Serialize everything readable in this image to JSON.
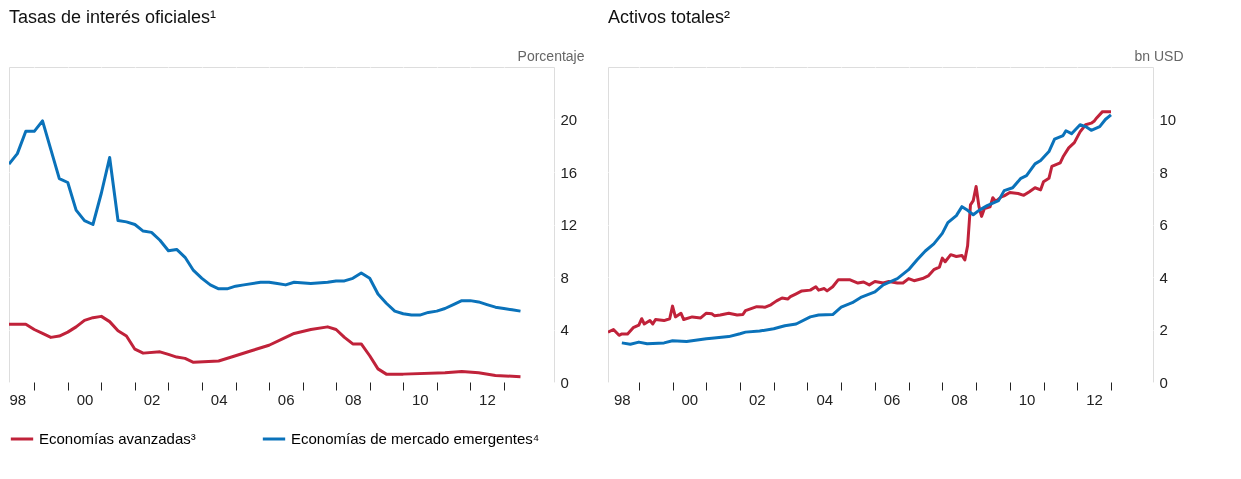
{
  "chart_data": [
    {
      "type": "line",
      "title": "Tasas de interés oficiales¹",
      "ylabel": "Porcentaje",
      "grid": true,
      "legend": "bottom",
      "xlim": [
        "1998-04",
        "2014-07"
      ],
      "ylim": [
        0,
        24
      ],
      "yticks": [
        0,
        4,
        8,
        12,
        16,
        20
      ],
      "xticks": [
        {
          "value": "1998-07",
          "label": "98"
        },
        {
          "value": "2000-07",
          "label": "00"
        },
        {
          "value": "2002-07",
          "label": "02"
        },
        {
          "value": "2004-07",
          "label": "04"
        },
        {
          "value": "2006-07",
          "label": "06"
        },
        {
          "value": "2008-07",
          "label": "08"
        },
        {
          "value": "2010-07",
          "label": "10"
        },
        {
          "value": "2012-07",
          "label": "12"
        },
        {
          "value": "1999-01",
          "label": null
        },
        {
          "value": "2000-01",
          "label": null
        },
        {
          "value": "2001-01",
          "label": null
        },
        {
          "value": "2002-01",
          "label": null
        },
        {
          "value": "2003-01",
          "label": null
        },
        {
          "value": "2004-01",
          "label": null
        },
        {
          "value": "2005-01",
          "label": null
        },
        {
          "value": "2006-01",
          "label": null
        },
        {
          "value": "2007-01",
          "label": null
        },
        {
          "value": "2008-01",
          "label": null
        },
        {
          "value": "2009-01",
          "label": null
        },
        {
          "value": "2010-01",
          "label": null
        },
        {
          "value": "2011-01",
          "label": null
        },
        {
          "value": "2012-01",
          "label": null
        },
        {
          "value": "2013-01",
          "label": null
        }
      ],
      "series": [
        {
          "name": "Economías avanzadas³",
          "color": "#c0223a",
          "x": [
            "1998-04",
            "1998-10",
            "1999-01",
            "1999-04",
            "1999-07",
            "1999-10",
            "2000-01",
            "2000-04",
            "2000-07",
            "2000-10",
            "2001-01",
            "2001-04",
            "2001-07",
            "2001-10",
            "2002-01",
            "2002-04",
            "2002-10",
            "2003-01",
            "2003-04",
            "2003-07",
            "2003-10",
            "2004-07",
            "2005-01",
            "2005-07",
            "2006-01",
            "2006-07",
            "2006-10",
            "2007-04",
            "2007-10",
            "2008-01",
            "2008-04",
            "2008-07",
            "2008-10",
            "2009-01",
            "2009-04",
            "2009-07",
            "2010-01",
            "2011-04",
            "2011-10",
            "2012-04",
            "2012-10",
            "2013-07"
          ],
          "values": [
            4.4,
            4.4,
            4.0,
            3.7,
            3.4,
            3.5,
            3.8,
            4.2,
            4.7,
            4.9,
            5.0,
            4.6,
            3.9,
            3.5,
            2.5,
            2.2,
            2.3,
            2.1,
            1.9,
            1.8,
            1.5,
            1.6,
            2.0,
            2.4,
            2.8,
            3.4,
            3.7,
            4.0,
            4.2,
            4.0,
            3.4,
            2.9,
            2.9,
            2.0,
            1.0,
            0.6,
            0.6,
            0.7,
            0.8,
            0.7,
            0.5,
            0.4
          ]
        },
        {
          "name": "Economías de mercado emergentes⁴",
          "color": "#0a72ba",
          "x": [
            "1998-04",
            "1998-07",
            "1998-10",
            "1999-01",
            "1999-04",
            "1999-07",
            "1999-10",
            "2000-01",
            "2000-04",
            "2000-07",
            "2000-10",
            "2001-01",
            "2001-04",
            "2001-07",
            "2001-10",
            "2002-01",
            "2002-04",
            "2002-07",
            "2002-10",
            "2003-01",
            "2003-04",
            "2003-07",
            "2003-10",
            "2004-01",
            "2004-04",
            "2004-07",
            "2004-10",
            "2005-01",
            "2005-04",
            "2005-10",
            "2006-01",
            "2006-04",
            "2006-07",
            "2006-10",
            "2007-04",
            "2007-10",
            "2008-01",
            "2008-04",
            "2008-07",
            "2008-10",
            "2009-01",
            "2009-04",
            "2009-07",
            "2009-10",
            "2010-01",
            "2010-04",
            "2010-07",
            "2010-10",
            "2011-01",
            "2011-04",
            "2011-07",
            "2011-10",
            "2012-01",
            "2012-04",
            "2012-07",
            "2012-10",
            "2013-01",
            "2013-04",
            "2013-07"
          ],
          "values": [
            16.6,
            17.4,
            19.1,
            19.1,
            19.9,
            17.7,
            15.5,
            15.2,
            13.1,
            12.3,
            12.0,
            14.4,
            17.1,
            12.3,
            12.2,
            12.0,
            11.5,
            11.4,
            10.8,
            10.0,
            10.1,
            9.5,
            8.5,
            7.9,
            7.4,
            7.1,
            7.1,
            7.3,
            7.4,
            7.6,
            7.6,
            7.5,
            7.4,
            7.6,
            7.5,
            7.6,
            7.7,
            7.7,
            7.9,
            8.3,
            7.9,
            6.7,
            6.0,
            5.4,
            5.2,
            5.1,
            5.1,
            5.3,
            5.4,
            5.6,
            5.9,
            6.2,
            6.2,
            6.1,
            5.9,
            5.7,
            5.6,
            5.5,
            5.4
          ]
        }
      ]
    },
    {
      "type": "line",
      "title": "Activos totales²",
      "ylabel": "bn USD",
      "grid": true,
      "legend": "bottom",
      "xlim": [
        "1998-02",
        "2014-04"
      ],
      "ylim": [
        0,
        12
      ],
      "yticks": [
        0,
        2,
        4,
        6,
        8,
        10
      ],
      "xticks": [
        {
          "value": "1998-07",
          "label": "98"
        },
        {
          "value": "2000-07",
          "label": "00"
        },
        {
          "value": "2002-07",
          "label": "02"
        },
        {
          "value": "2004-07",
          "label": "04"
        },
        {
          "value": "2006-07",
          "label": "06"
        },
        {
          "value": "2008-07",
          "label": "08"
        },
        {
          "value": "2010-07",
          "label": "10"
        },
        {
          "value": "2012-07",
          "label": "12"
        },
        {
          "value": "1999-01",
          "label": null
        },
        {
          "value": "2000-01",
          "label": null
        },
        {
          "value": "2001-01",
          "label": null
        },
        {
          "value": "2002-01",
          "label": null
        },
        {
          "value": "2003-01",
          "label": null
        },
        {
          "value": "2004-01",
          "label": null
        },
        {
          "value": "2005-01",
          "label": null
        },
        {
          "value": "2006-01",
          "label": null
        },
        {
          "value": "2007-01",
          "label": null
        },
        {
          "value": "2008-01",
          "label": null
        },
        {
          "value": "2009-01",
          "label": null
        },
        {
          "value": "2010-01",
          "label": null
        },
        {
          "value": "2011-01",
          "label": null
        },
        {
          "value": "2012-01",
          "label": null
        },
        {
          "value": "2013-01",
          "label": null
        }
      ],
      "series": [
        {
          "name": "Economías avanzadas³",
          "color": "#c0223a",
          "x": [
            "1998-02",
            "1998-04",
            "1998-06",
            "1998-07",
            "1998-09",
            "1998-11",
            "1999-01",
            "1999-02",
            "1999-03",
            "1999-05",
            "1999-06",
            "1999-07",
            "1999-10",
            "1999-12",
            "2000-01",
            "2000-02",
            "2000-04",
            "2000-05",
            "2000-08",
            "2000-11",
            "2001-01",
            "2001-03",
            "2001-04",
            "2001-06",
            "2001-09",
            "2001-12",
            "2002-02",
            "2002-03",
            "2002-07",
            "2002-10",
            "2002-12",
            "2003-02",
            "2003-04",
            "2003-06",
            "2003-07",
            "2003-09",
            "2003-11",
            "2004-02",
            "2004-04",
            "2004-05",
            "2004-07",
            "2004-08",
            "2004-10",
            "2004-12",
            "2005-02",
            "2005-04",
            "2005-07",
            "2005-09",
            "2005-11",
            "2006-01",
            "2006-04",
            "2006-06",
            "2006-09",
            "2006-11",
            "2007-01",
            "2007-03",
            "2007-06",
            "2007-08",
            "2007-10",
            "2007-12",
            "2008-01",
            "2008-02",
            "2008-04",
            "2008-06",
            "2008-08",
            "2008-09",
            "2008-10",
            "2008-11",
            "2008-12",
            "2009-01",
            "2009-02",
            "2009-03",
            "2009-04",
            "2009-06",
            "2009-07",
            "2009-08",
            "2009-10",
            "2009-11",
            "2010-01",
            "2010-04",
            "2010-06",
            "2010-08",
            "2010-10",
            "2010-12",
            "2011-01",
            "2011-03",
            "2011-04",
            "2011-07",
            "2011-08",
            "2011-10",
            "2011-12",
            "2012-02",
            "2012-04",
            "2012-06",
            "2012-07",
            "2012-08",
            "2012-10",
            "2012-12",
            "2013-01"
          ],
          "values": [
            1.9,
            2.0,
            1.78,
            1.83,
            1.83,
            2.07,
            2.17,
            2.41,
            2.21,
            2.34,
            2.21,
            2.38,
            2.34,
            2.41,
            2.89,
            2.48,
            2.62,
            2.38,
            2.48,
            2.44,
            2.62,
            2.6,
            2.52,
            2.55,
            2.62,
            2.55,
            2.57,
            2.72,
            2.87,
            2.85,
            2.94,
            3.09,
            3.2,
            3.16,
            3.25,
            3.36,
            3.47,
            3.5,
            3.63,
            3.5,
            3.56,
            3.47,
            3.63,
            3.9,
            3.9,
            3.9,
            3.77,
            3.81,
            3.7,
            3.83,
            3.77,
            3.83,
            3.77,
            3.77,
            3.94,
            3.86,
            3.94,
            4.04,
            4.28,
            4.38,
            4.72,
            4.58,
            4.85,
            4.78,
            4.82,
            4.65,
            5.19,
            6.75,
            6.91,
            7.45,
            6.68,
            6.31,
            6.61,
            6.67,
            7.02,
            6.88,
            7.05,
            7.09,
            7.22,
            7.18,
            7.11,
            7.25,
            7.4,
            7.32,
            7.63,
            7.76,
            8.21,
            8.35,
            8.58,
            8.92,
            9.12,
            9.53,
            9.8,
            9.86,
            9.93,
            10.07,
            10.3,
            10.3,
            10.3
          ]
        },
        {
          "name": "Economías de mercado emergentes⁴",
          "color": "#0a72ba",
          "x": [
            "1998-07",
            "1998-10",
            "1999-01",
            "1999-04",
            "1999-10",
            "2000-01",
            "2000-06",
            "2001-01",
            "2001-03",
            "2001-09",
            "2002-01",
            "2002-03",
            "2002-08",
            "2003-01",
            "2003-05",
            "2003-09",
            "2004-02",
            "2004-05",
            "2004-10",
            "2005-01",
            "2005-05",
            "2005-08",
            "2006-01",
            "2006-04",
            "2006-09",
            "2007-01",
            "2007-04",
            "2007-07",
            "2007-10",
            "2008-01",
            "2008-03",
            "2008-06",
            "2008-08",
            "2008-10",
            "2008-12",
            "2009-02",
            "2009-05",
            "2009-09",
            "2009-11",
            "2010-02",
            "2010-05",
            "2010-07",
            "2010-10",
            "2010-12",
            "2011-03",
            "2011-05",
            "2011-08",
            "2011-09",
            "2011-11",
            "2012-02",
            "2012-04",
            "2012-06",
            "2012-09",
            "2012-11",
            "2013-01"
          ],
          "values": [
            1.49,
            1.44,
            1.52,
            1.46,
            1.49,
            1.57,
            1.54,
            1.65,
            1.67,
            1.73,
            1.84,
            1.9,
            1.94,
            2.03,
            2.14,
            2.21,
            2.48,
            2.55,
            2.57,
            2.85,
            3.02,
            3.22,
            3.43,
            3.7,
            3.94,
            4.28,
            4.65,
            4.99,
            5.26,
            5.66,
            6.07,
            6.34,
            6.68,
            6.54,
            6.37,
            6.54,
            6.72,
            6.91,
            7.29,
            7.4,
            7.76,
            7.86,
            8.31,
            8.44,
            8.78,
            9.25,
            9.39,
            9.57,
            9.46,
            9.8,
            9.73,
            9.59,
            9.73,
            10.0,
            10.18
          ]
        }
      ]
    }
  ]
}
